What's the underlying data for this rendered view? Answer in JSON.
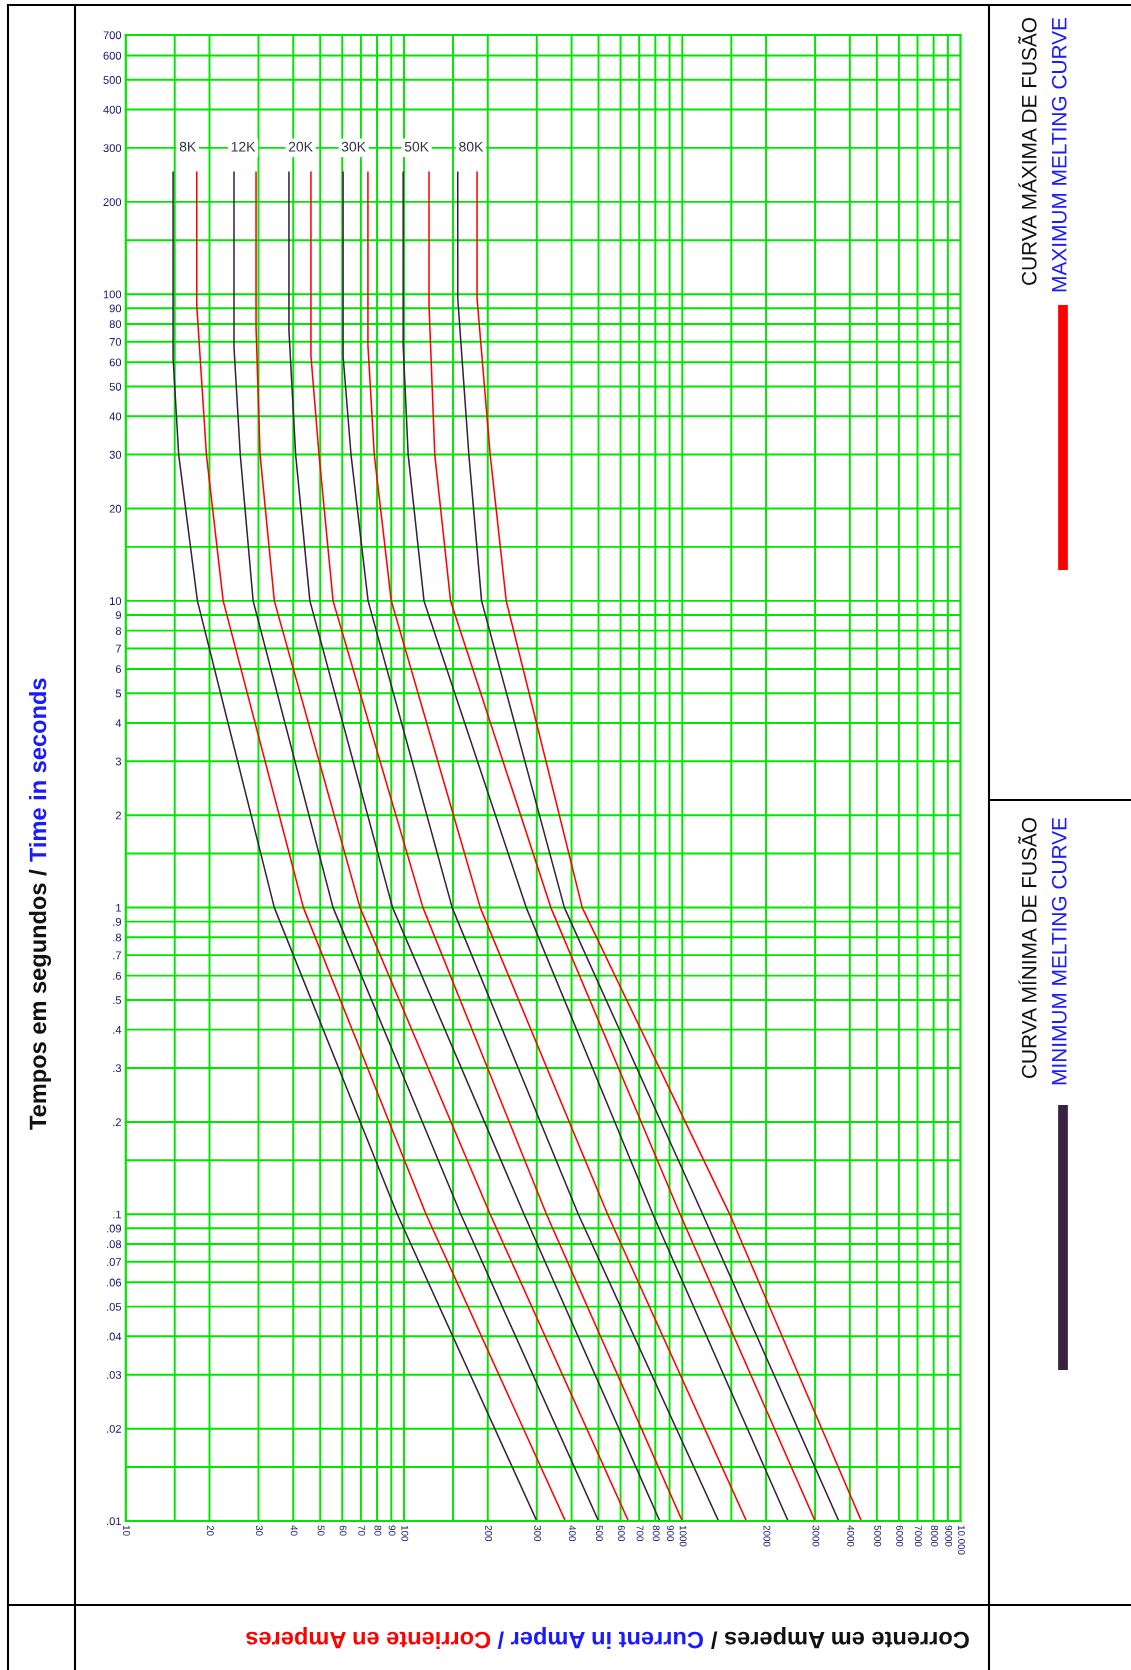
{
  "chart_data": {
    "type": "line",
    "xlabel": "Corrente em Amperes / Current in Amper / Corriente en Amperes",
    "ylabel": "Tempos em segundos / Time in seconds",
    "log": "xy",
    "grid": true,
    "legend": "right",
    "marker": "none",
    "line_style": "solid",
    "xlim": [
      10,
      10000
    ],
    "ylim": [
      0.01,
      700
    ],
    "xticks": [
      10,
      {
        "value": 15,
        "label": null
      },
      20,
      30,
      40,
      50,
      60,
      70,
      80,
      90,
      100,
      {
        "value": 150,
        "label": null
      },
      200,
      300,
      400,
      500,
      600,
      700,
      800,
      900,
      1000,
      {
        "value": 1500,
        "label": null
      },
      2000,
      3000,
      4000,
      5000,
      6000,
      7000,
      8000,
      9000,
      {
        "value": 10000,
        "label": "10.000"
      }
    ],
    "yticks": [
      700,
      600,
      500,
      400,
      300,
      200,
      {
        "value": 150,
        "label": null
      },
      100,
      90,
      80,
      70,
      60,
      50,
      40,
      30,
      20,
      {
        "value": 15,
        "label": null
      },
      10,
      9,
      8,
      7,
      6,
      5,
      4,
      3,
      2,
      {
        "value": 1.5,
        "label": null
      },
      1,
      {
        "value": 0.9,
        "label": ".9"
      },
      {
        "value": 0.8,
        "label": ".8"
      },
      {
        "value": 0.7,
        "label": ".7"
      },
      {
        "value": 0.6,
        "label": ".6"
      },
      {
        "value": 0.5,
        "label": ".5"
      },
      {
        "value": 0.4,
        "label": ".4"
      },
      {
        "value": 0.3,
        "label": ".3"
      },
      {
        "value": 0.2,
        "label": ".2"
      },
      {
        "value": 0.15,
        "label": null
      },
      {
        "value": 0.1,
        "label": ".1"
      },
      {
        "value": 0.09,
        "label": ".09"
      },
      {
        "value": 0.08,
        "label": ".08"
      },
      {
        "value": 0.07,
        "label": ".07"
      },
      {
        "value": 0.06,
        "label": ".06"
      },
      {
        "value": 0.05,
        "label": ".05"
      },
      {
        "value": 0.04,
        "label": ".04"
      },
      {
        "value": 0.03,
        "label": ".03"
      },
      {
        "value": 0.02,
        "label": ".02"
      },
      {
        "value": 0.015,
        "label": null
      },
      {
        "value": 0.01,
        "label": ".01"
      }
    ],
    "annotations": [
      {
        "text": "8K",
        "x": 16.7,
        "y": 300
      },
      {
        "text": "12K",
        "x": 26.4,
        "y": 300
      },
      {
        "text": "20K",
        "x": 42.5,
        "y": 300
      },
      {
        "text": "30K",
        "x": 65.9,
        "y": 300
      },
      {
        "text": "50K",
        "x": 111,
        "y": 300
      },
      {
        "text": "80K",
        "x": 174,
        "y": 300
      }
    ],
    "series": [
      {
        "name": "CURVA MÁXIMA DE FUSÃO\nMAXIMUM MELTING CURVE",
        "color": "#ff0000",
        "x": [
          18.0,
          18.0,
          19.5,
          22.4,
          43.5,
          120,
          380
        ],
        "values": [
          250,
          92,
          30,
          10,
          1,
          0.1,
          0.01
        ]
      },
      {
        "name": "CURVA MÍNIMA DE FUSÃO\nMINIMUM MELTING CURVE",
        "color": "#3a2040",
        "x": [
          14.8,
          14.8,
          15.5,
          18.1,
          34.2,
          94.6,
          300
        ],
        "values": [
          250,
          62,
          30,
          10,
          1,
          0.1,
          0.01
        ]
      },
      {
        "color": "#ff0000",
        "x": [
          29.4,
          29.4,
          30.4,
          34.2,
          69.5,
          204,
          640
        ],
        "values": [
          250,
          78,
          30,
          10,
          1,
          0.1,
          0.01
        ]
      },
      {
        "color": "#3a2040",
        "x": [
          24.5,
          24.5,
          25.8,
          28.7,
          55.6,
          160,
          500
        ],
        "values": [
          250,
          67,
          30,
          10,
          1,
          0.1,
          0.01
        ]
      },
      {
        "color": "#ff0000",
        "x": [
          46.3,
          46.3,
          49.5,
          55.6,
          117,
          325,
          1000
        ],
        "values": [
          250,
          63,
          30,
          10,
          1,
          0.1,
          0.01
        ]
      },
      {
        "color": "#3a2040",
        "x": [
          38.6,
          38.6,
          40.8,
          45.9,
          91,
          270,
          830
        ],
        "values": [
          250,
          76,
          30,
          10,
          1,
          0.1,
          0.01
        ]
      },
      {
        "color": "#ff0000",
        "x": [
          74.2,
          74.2,
          78.2,
          90,
          188,
          539,
          1700
        ],
        "values": [
          250,
          68,
          30,
          10,
          1,
          0.1,
          0.01
        ]
      },
      {
        "color": "#3a2040",
        "x": [
          60.4,
          60.4,
          64.5,
          74.3,
          149,
          423,
          1350
        ],
        "values": [
          250,
          63,
          30,
          10,
          1,
          0.1,
          0.01
        ]
      },
      {
        "color": "#ff0000",
        "x": [
          123,
          123,
          129,
          147,
          337,
          982,
          3000
        ],
        "values": [
          250,
          92,
          30,
          10,
          1,
          0.1,
          0.01
        ]
      },
      {
        "color": "#3a2040",
        "x": [
          99.3,
          99.3,
          103.5,
          118,
          275,
          784,
          2400
        ],
        "values": [
          250,
          68,
          30,
          10,
          1,
          0.1,
          0.01
        ]
      },
      {
        "color": "#ff0000",
        "x": [
          183,
          183,
          204,
          233,
          437,
          1481,
          4400
        ],
        "values": [
          250,
          97,
          30,
          10,
          1,
          0.1,
          0.01
        ]
      },
      {
        "color": "#3a2040",
        "x": [
          156,
          156,
          171,
          190,
          377,
          1184,
          3650
        ],
        "values": [
          250,
          97,
          30,
          10,
          1,
          0.1,
          0.01
        ]
      }
    ]
  }
}
